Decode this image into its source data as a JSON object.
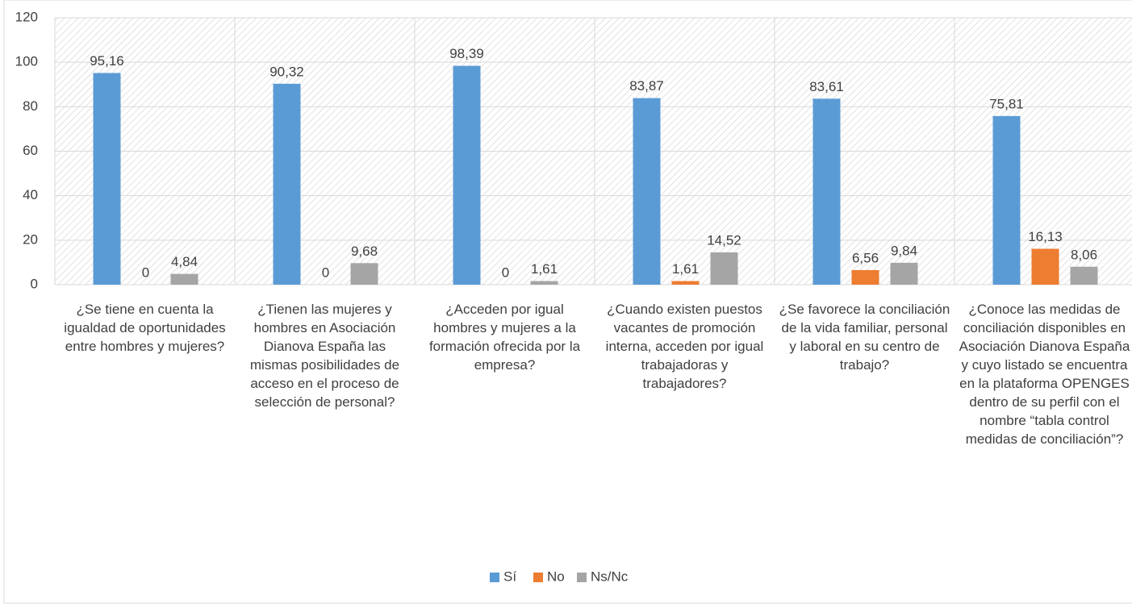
{
  "chart_data": {
    "type": "bar",
    "categories": [
      "¿Se tiene en cuenta la igualdad de oportunidades entre hombres y mujeres?",
      "¿Tienen las mujeres y hombres en Asociación Dianova España las mismas posibilidades de acceso en el proceso de selección de personal?",
      "¿Acceden por igual hombres y mujeres a la formación ofrecida por la empresa?",
      "¿Cuando existen puestos vacantes de promoción interna, acceden por igual trabajadoras y trabajadores?",
      "¿Se favorece la conciliación de la vida familiar, personal y laboral en su centro de trabajo?",
      "¿Conoce las medidas de conciliación disponibles en Asociación Dianova España y cuyo listado se encuentra en la plataforma OPENGES dentro de su perfil con el nombre “tabla control medidas de conciliación”?"
    ],
    "series": [
      {
        "name": "Sí",
        "color": "#5b9bd5",
        "values": [
          95.16,
          90.32,
          98.39,
          83.87,
          83.61,
          75.81
        ],
        "value_labels": [
          "95,16",
          "90,32",
          "98,39",
          "83,87",
          "83,61",
          "75,81"
        ]
      },
      {
        "name": "No",
        "color": "#ed7d31",
        "values": [
          0,
          0,
          0,
          1.61,
          6.56,
          16.13
        ],
        "value_labels": [
          "0",
          "0",
          "0",
          "1,61",
          "6,56",
          "16,13"
        ]
      },
      {
        "name": "Ns/Nc",
        "color": "#a5a5a5",
        "values": [
          4.84,
          9.68,
          1.61,
          14.52,
          9.84,
          8.06
        ],
        "value_labels": [
          "4,84",
          "9,68",
          "1,61",
          "14,52",
          "9,84",
          "8,06"
        ]
      }
    ],
    "ylim": [
      0,
      120
    ],
    "yticks": [
      0,
      20,
      40,
      60,
      80,
      100,
      120
    ],
    "grid": true,
    "legend": "bottom"
  }
}
